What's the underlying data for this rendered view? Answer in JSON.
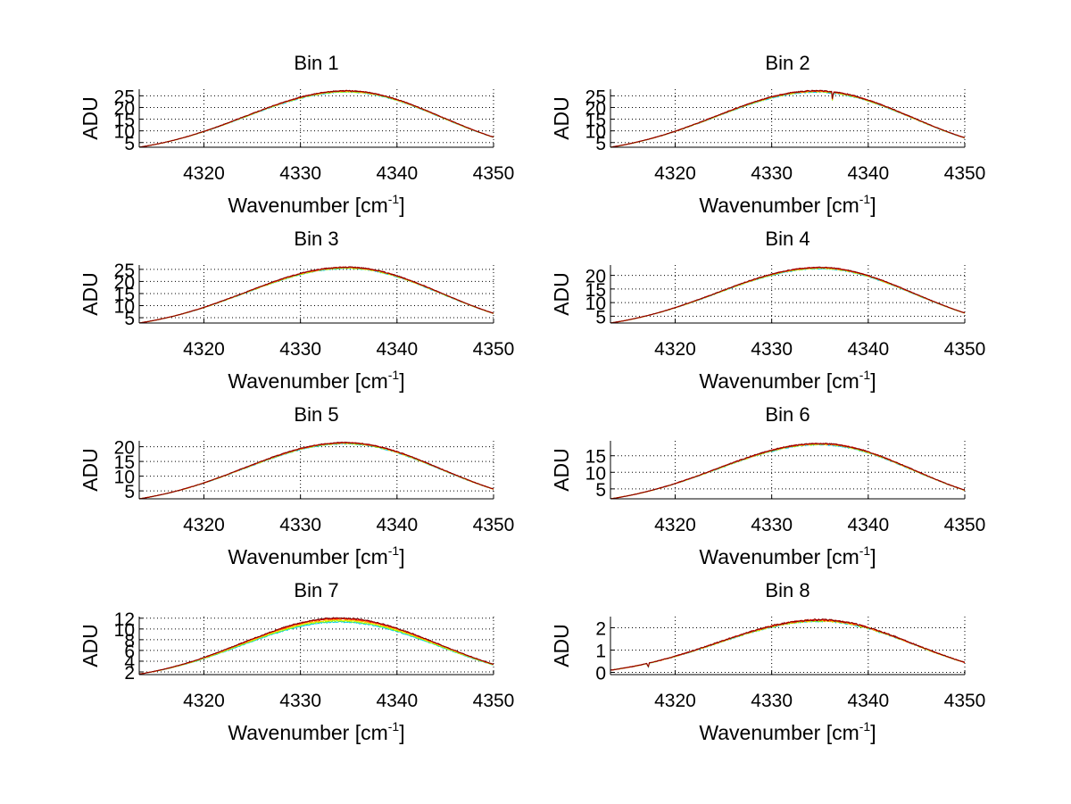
{
  "chart_data": [
    {
      "type": "line",
      "title": "Bin 1",
      "xlabel": "Wavenumber [cm",
      "xlabel_sup": "-1",
      "xlabel_close": "]",
      "ylabel": "ADU",
      "xlim": [
        4313.3,
        4350
      ],
      "ylim": [
        3,
        27.8
      ],
      "xticks": [
        4320,
        4330,
        4340,
        4350
      ],
      "yticks": [
        5,
        10,
        15,
        20,
        25
      ],
      "grid": true,
      "profile": {
        "center": 4334.8,
        "peak": 27.0,
        "left_edge": 3.0,
        "right_edge": 7.3,
        "noise": 0.35
      },
      "dips": [],
      "series": [
        {
          "name": "series-1",
          "color": "#00bfff",
          "offset": -0.15
        },
        {
          "name": "series-2",
          "color": "#80ff00",
          "offset": -0.1
        },
        {
          "name": "series-3",
          "color": "#ffd700",
          "offset": -0.05
        },
        {
          "name": "series-4",
          "color": "#ff8000",
          "offset": 0.0
        },
        {
          "name": "series-5",
          "color": "#ff0000",
          "offset": 0.03
        },
        {
          "name": "series-6",
          "color": "#800000",
          "offset": 0.05
        }
      ]
    },
    {
      "type": "line",
      "title": "Bin 2",
      "xlabel": "Wavenumber [cm",
      "xlabel_sup": "-1",
      "xlabel_close": "]",
      "ylabel": "ADU",
      "xlim": [
        4313.3,
        4350
      ],
      "ylim": [
        3,
        27.8
      ],
      "xticks": [
        4320,
        4330,
        4340,
        4350
      ],
      "yticks": [
        5,
        10,
        15,
        20,
        25
      ],
      "grid": true,
      "profile": {
        "center": 4334.6,
        "peak": 27.0,
        "left_edge": 3.0,
        "right_edge": 7.0,
        "noise": 0.4
      },
      "dips": [
        {
          "x": 4336.3,
          "depth": 4.0
        }
      ],
      "series": [
        {
          "name": "series-1",
          "color": "#00bfff",
          "offset": -0.15
        },
        {
          "name": "series-2",
          "color": "#80ff00",
          "offset": -0.1
        },
        {
          "name": "series-3",
          "color": "#ffd700",
          "offset": -0.05
        },
        {
          "name": "series-4",
          "color": "#ff8000",
          "offset": 0.0
        },
        {
          "name": "series-5",
          "color": "#ff0000",
          "offset": 0.03
        },
        {
          "name": "series-6",
          "color": "#800000",
          "offset": 0.05
        }
      ]
    },
    {
      "type": "line",
      "title": "Bin 3",
      "xlabel": "Wavenumber [cm",
      "xlabel_sup": "-1",
      "xlabel_close": "]",
      "ylabel": "ADU",
      "xlim": [
        4313.3,
        4350
      ],
      "ylim": [
        2.8,
        26.8
      ],
      "xticks": [
        4320,
        4330,
        4340,
        4350
      ],
      "yticks": [
        5,
        10,
        15,
        20,
        25
      ],
      "grid": true,
      "profile": {
        "center": 4334.8,
        "peak": 25.8,
        "left_edge": 2.8,
        "right_edge": 6.8,
        "noise": 0.35
      },
      "dips": [],
      "series": [
        {
          "name": "series-1",
          "color": "#00bfff",
          "offset": -0.15
        },
        {
          "name": "series-2",
          "color": "#80ff00",
          "offset": -0.1
        },
        {
          "name": "series-3",
          "color": "#ffd700",
          "offset": -0.05
        },
        {
          "name": "series-4",
          "color": "#ff8000",
          "offset": 0.0
        },
        {
          "name": "series-5",
          "color": "#ff0000",
          "offset": 0.03
        },
        {
          "name": "series-6",
          "color": "#800000",
          "offset": 0.05
        }
      ]
    },
    {
      "type": "line",
      "title": "Bin 4",
      "xlabel": "Wavenumber [cm",
      "xlabel_sup": "-1",
      "xlabel_close": "]",
      "ylabel": "ADU",
      "xlim": [
        4313.3,
        4350
      ],
      "ylim": [
        2.5,
        23.8
      ],
      "xticks": [
        4320,
        4330,
        4340,
        4350
      ],
      "yticks": [
        5,
        10,
        15,
        20
      ],
      "grid": true,
      "profile": {
        "center": 4335.0,
        "peak": 22.8,
        "left_edge": 2.5,
        "right_edge": 6.2,
        "noise": 0.3
      },
      "dips": [],
      "series": [
        {
          "name": "series-1",
          "color": "#00bfff",
          "offset": -0.15
        },
        {
          "name": "series-2",
          "color": "#80ff00",
          "offset": -0.1
        },
        {
          "name": "series-3",
          "color": "#ffd700",
          "offset": -0.05
        },
        {
          "name": "series-4",
          "color": "#ff8000",
          "offset": 0.0
        },
        {
          "name": "series-5",
          "color": "#ff0000",
          "offset": 0.03
        },
        {
          "name": "series-6",
          "color": "#800000",
          "offset": 0.05
        }
      ]
    },
    {
      "type": "line",
      "title": "Bin 5",
      "xlabel": "Wavenumber [cm",
      "xlabel_sup": "-1",
      "xlabel_close": "]",
      "ylabel": "ADU",
      "xlim": [
        4313.3,
        4350
      ],
      "ylim": [
        2.3,
        22.0
      ],
      "xticks": [
        4320,
        4330,
        4340,
        4350
      ],
      "yticks": [
        5,
        10,
        15,
        20
      ],
      "grid": true,
      "profile": {
        "center": 4334.6,
        "peak": 21.3,
        "left_edge": 2.3,
        "right_edge": 5.6,
        "noise": 0.3
      },
      "dips": [],
      "series": [
        {
          "name": "series-1",
          "color": "#00bfff",
          "offset": -0.15
        },
        {
          "name": "series-2",
          "color": "#80ff00",
          "offset": -0.1
        },
        {
          "name": "series-3",
          "color": "#ffd700",
          "offset": -0.05
        },
        {
          "name": "series-4",
          "color": "#ff8000",
          "offset": 0.0
        },
        {
          "name": "series-5",
          "color": "#ff0000",
          "offset": 0.03
        },
        {
          "name": "series-6",
          "color": "#800000",
          "offset": 0.05
        }
      ]
    },
    {
      "type": "line",
      "title": "Bin 6",
      "xlabel": "Wavenumber [cm",
      "xlabel_sup": "-1",
      "xlabel_close": "]",
      "ylabel": "ADU",
      "xlim": [
        4313.3,
        4350
      ],
      "ylim": [
        2.0,
        19.5
      ],
      "xticks": [
        4320,
        4330,
        4340,
        4350
      ],
      "yticks": [
        5,
        10,
        15
      ],
      "grid": true,
      "profile": {
        "center": 4335.0,
        "peak": 18.6,
        "left_edge": 2.0,
        "right_edge": 4.6,
        "noise": 0.3
      },
      "dips": [],
      "series": [
        {
          "name": "series-1",
          "color": "#00bfff",
          "offset": -0.15
        },
        {
          "name": "series-2",
          "color": "#80ff00",
          "offset": -0.1
        },
        {
          "name": "series-3",
          "color": "#ffd700",
          "offset": -0.05
        },
        {
          "name": "series-4",
          "color": "#ff8000",
          "offset": 0.0
        },
        {
          "name": "series-5",
          "color": "#ff0000",
          "offset": 0.03
        },
        {
          "name": "series-6",
          "color": "#800000",
          "offset": 0.05
        }
      ]
    },
    {
      "type": "line",
      "title": "Bin 7",
      "xlabel": "Wavenumber [cm",
      "xlabel_sup": "-1",
      "xlabel_close": "]",
      "ylabel": "ADU",
      "xlim": [
        4313.3,
        4350
      ],
      "ylim": [
        1.5,
        12.3
      ],
      "xticks": [
        4320,
        4330,
        4340,
        4350
      ],
      "yticks": [
        2,
        4,
        6,
        8,
        10,
        12
      ],
      "grid": true,
      "profile": {
        "center": 4334.0,
        "peak": 11.9,
        "left_edge": 1.6,
        "right_edge": 3.4,
        "noise": 0.18
      },
      "dips": [],
      "series": [
        {
          "name": "series-1",
          "color": "#00c8e6",
          "offset": -0.5
        },
        {
          "name": "series-2",
          "color": "#80ff00",
          "offset": -0.35
        },
        {
          "name": "series-3",
          "color": "#ffe000",
          "offset": -0.2
        },
        {
          "name": "series-4",
          "color": "#ff8000",
          "offset": -0.05
        },
        {
          "name": "series-5",
          "color": "#ff0000",
          "offset": 0.05
        },
        {
          "name": "series-6",
          "color": "#800000",
          "offset": 0.12
        }
      ]
    },
    {
      "type": "line",
      "title": "Bin 8",
      "xlabel": "Wavenumber [cm",
      "xlabel_sup": "-1",
      "xlabel_close": "]",
      "ylabel": "ADU",
      "xlim": [
        4313.3,
        4350
      ],
      "ylim": [
        -0.1,
        2.5
      ],
      "xticks": [
        4320,
        4330,
        4340,
        4350
      ],
      "yticks": [
        0,
        1,
        2
      ],
      "grid": true,
      "profile": {
        "center": 4335.0,
        "peak": 2.35,
        "left_edge": 0.1,
        "right_edge": 0.45,
        "noise": 0.06
      },
      "dips": [
        {
          "x": 4317.2,
          "depth": 0.25
        }
      ],
      "series": [
        {
          "name": "series-1",
          "color": "#00c8e6",
          "offset": -0.22
        },
        {
          "name": "series-2",
          "color": "#80ff00",
          "offset": -0.17
        },
        {
          "name": "series-3",
          "color": "#ffe000",
          "offset": -0.12
        },
        {
          "name": "series-4",
          "color": "#ff8000",
          "offset": -0.06
        },
        {
          "name": "series-5",
          "color": "#ff0000",
          "offset": -0.02
        },
        {
          "name": "series-6",
          "color": "#800000",
          "offset": 0.03
        }
      ]
    }
  ]
}
